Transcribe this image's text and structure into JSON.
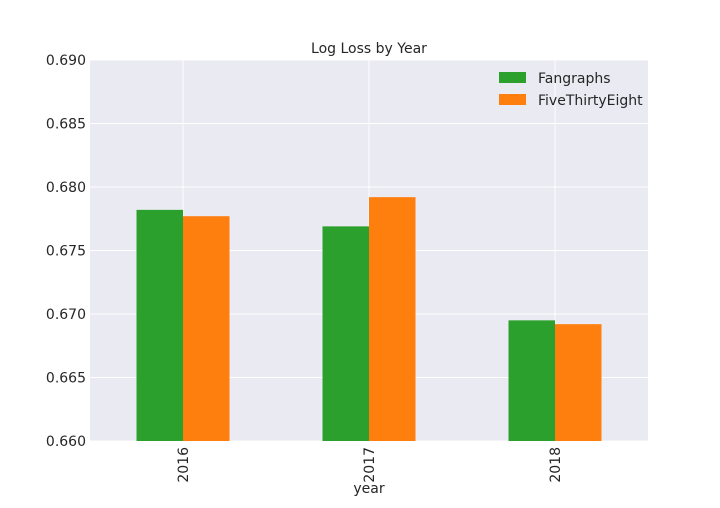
{
  "colors": {
    "background": "#ffffff",
    "plot_background": "#eaeaf2",
    "grid": "#ffffff",
    "text": "#262626"
  },
  "chart_data": {
    "type": "bar",
    "title": "Log Loss by Year",
    "xlabel": "year",
    "ylabel": "",
    "categories": [
      "2016",
      "2017",
      "2018"
    ],
    "series": [
      {
        "name": "Fangraphs",
        "color": "#2ca02c",
        "values": [
          0.6782,
          0.6769,
          0.6695
        ]
      },
      {
        "name": "FiveThirtyEight",
        "color": "#ff7f0e",
        "values": [
          0.6777,
          0.6792,
          0.6692
        ]
      }
    ],
    "ylim": [
      0.66,
      0.69
    ],
    "yticks": [
      "0.660",
      "0.665",
      "0.670",
      "0.675",
      "0.680",
      "0.685",
      "0.690"
    ],
    "grid": true,
    "legend_position": "top-right"
  }
}
